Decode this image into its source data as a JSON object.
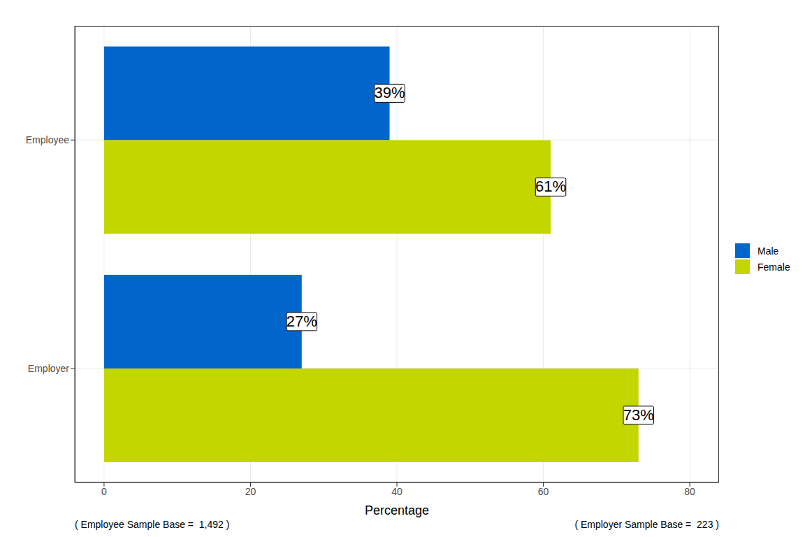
{
  "chart_data": {
    "type": "bar",
    "orientation": "horizontal",
    "categories": [
      "Employee",
      "Employer"
    ],
    "series": [
      {
        "name": "Male",
        "color": "#0066CC",
        "values": [
          39,
          27
        ],
        "value_labels": [
          "39%",
          "27%"
        ]
      },
      {
        "name": "Female",
        "color": "#C4D600",
        "values": [
          61,
          73
        ],
        "value_labels": [
          "61%",
          "73%"
        ]
      }
    ],
    "x_label": "Percentage",
    "xlim": [
      -4,
      84
    ],
    "xticks": [
      0,
      20,
      40,
      60,
      80
    ],
    "grid": true,
    "legend": "right",
    "data_labels": true,
    "annotations": [
      "( Employee Sample Base =  1,492 )",
      "( Employer Sample Base =  223 )"
    ]
  }
}
